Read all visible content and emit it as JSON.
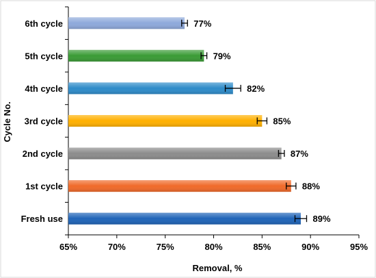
{
  "chart_data": {
    "type": "bar",
    "orientation": "horizontal",
    "categories": [
      "6th cycle",
      "5th cycle",
      "4th cycle",
      "3rd cycle",
      "2nd cycle",
      "1st cycle",
      "Fresh use"
    ],
    "values": [
      77,
      79,
      82,
      85,
      87,
      88,
      89
    ],
    "error": [
      0.3,
      0.3,
      0.8,
      0.5,
      0.3,
      0.5,
      0.6
    ],
    "data_labels": [
      "77%",
      "79%",
      "82%",
      "85%",
      "87%",
      "88%",
      "89%"
    ],
    "colors": [
      "#8EA9DB",
      "#3A9B35",
      "#2E8BC9",
      "#FFB000",
      "#8C8C8C",
      "#F06A2A",
      "#1F64B8"
    ],
    "xlim": [
      65,
      95
    ],
    "x_ticks": [
      65,
      70,
      75,
      80,
      85,
      90,
      95
    ],
    "x_tick_labels": [
      "65%",
      "70%",
      "75%",
      "80%",
      "85%",
      "90%",
      "95%"
    ],
    "xlabel": "Removal,  %",
    "ylabel": "Cycle No.",
    "grid": false,
    "legend": "none"
  }
}
